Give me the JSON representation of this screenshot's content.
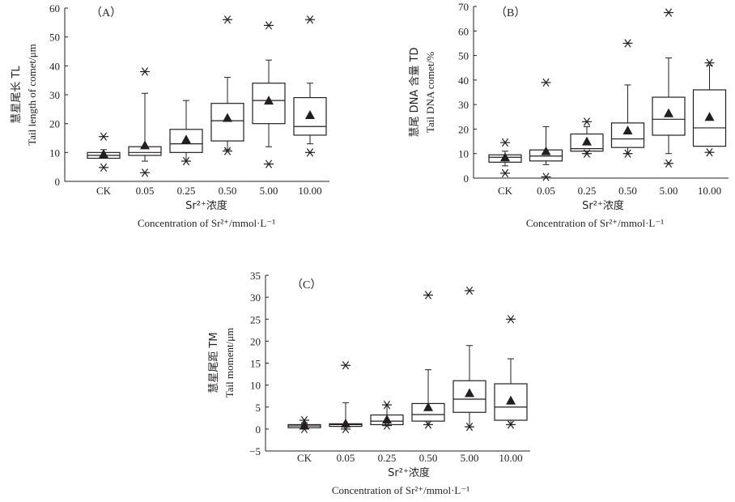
{
  "chart_data": [
    {
      "type": "box",
      "panel_label": "（A）",
      "categories": [
        "CK",
        "0.05",
        "0.25",
        "0.50",
        "5.00",
        "10.00"
      ],
      "ylim": [
        0,
        60
      ],
      "yticks": [
        "0",
        "10",
        "20",
        "30",
        "40",
        "50",
        "60"
      ],
      "ylabel_cn": "慧星尾长 TL",
      "ylabel_en": "Tail length of comet/μm",
      "xlabel_cn": "Sr²⁺浓度",
      "xlabel_en": "Concentration of Sr²⁺/mmol·L⁻¹",
      "boxes": [
        {
          "wlo": 8,
          "q1": 8,
          "median": 9,
          "q3": 10,
          "whi": 11,
          "mean": 9.5,
          "outliers": [
            4.8,
            15.5
          ]
        },
        {
          "wlo": 7,
          "q1": 9,
          "median": 10,
          "q3": 12,
          "whi": 30.5,
          "mean": 12.5,
          "outliers": [
            3,
            38
          ]
        },
        {
          "wlo": 7,
          "q1": 10,
          "median": 13,
          "q3": 18,
          "whi": 28,
          "mean": 14.5,
          "outliers": [
            7
          ]
        },
        {
          "wlo": 11,
          "q1": 14,
          "median": 21,
          "q3": 27,
          "whi": 36,
          "mean": 22,
          "outliers": [
            10.5,
            56
          ]
        },
        {
          "wlo": 12,
          "q1": 20,
          "median": 28,
          "q3": 34,
          "whi": 42,
          "mean": 28,
          "outliers": [
            6,
            54
          ]
        },
        {
          "wlo": 13,
          "q1": 16,
          "median": 19,
          "q3": 29,
          "whi": 34,
          "mean": 23,
          "outliers": [
            10,
            56
          ]
        }
      ]
    },
    {
      "type": "box",
      "panel_label": "（B）",
      "categories": [
        "CK",
        "0.05",
        "0.25",
        "0.50",
        "5.00",
        "10.00"
      ],
      "ylim": [
        0,
        70
      ],
      "yticks": [
        "0",
        "10",
        "20",
        "30",
        "40",
        "50",
        "60",
        "70"
      ],
      "ylabel_cn": "慧尾 DNA 含量 TD",
      "ylabel_en": "Tail DNA comet/%",
      "xlabel_cn": "Sr²⁺浓度",
      "xlabel_en": "Concentration of Sr²⁺/mmol·L⁻¹",
      "boxes": [
        {
          "wlo": 5,
          "q1": 6.5,
          "median": 8.5,
          "q3": 9.5,
          "whi": 11,
          "mean": 8.5,
          "outliers": [
            2,
            14.5
          ]
        },
        {
          "wlo": 5.5,
          "q1": 7,
          "median": 9,
          "q3": 11.5,
          "whi": 21,
          "mean": 11,
          "outliers": [
            0.5,
            39
          ]
        },
        {
          "wlo": 10,
          "q1": 11,
          "median": 12,
          "q3": 18,
          "whi": 21,
          "mean": 15,
          "outliers": [
            10,
            23
          ]
        },
        {
          "wlo": 10,
          "q1": 12.5,
          "median": 16,
          "q3": 22.5,
          "whi": 38,
          "mean": 19.5,
          "outliers": [
            10,
            55
          ]
        },
        {
          "wlo": 10,
          "q1": 17.5,
          "median": 24,
          "q3": 33,
          "whi": 49,
          "mean": 26.5,
          "outliers": [
            6,
            67.5
          ]
        },
        {
          "wlo": 13,
          "q1": 13,
          "median": 20.5,
          "q3": 36,
          "whi": 46,
          "mean": 25,
          "outliers": [
            10.5,
            47
          ]
        }
      ]
    },
    {
      "type": "box",
      "panel_label": "（C）",
      "categories": [
        "CK",
        "0.05",
        "0.25",
        "0.50",
        "5.00",
        "10.00"
      ],
      "ylim": [
        -5,
        35
      ],
      "yticks": [
        "−5",
        "0",
        "5",
        "10",
        "15",
        "20",
        "25",
        "30",
        "35"
      ],
      "ylabel_cn": "慧星尾距 TM",
      "ylabel_en": "Tail moment/μm",
      "xlabel_cn": "Sr²⁺浓度",
      "xlabel_en": "Concentration of Sr²⁺/mmol·L⁻¹",
      "boxes": [
        {
          "wlo": 0.3,
          "q1": 0.3,
          "median": 0.7,
          "q3": 1,
          "whi": 1.4,
          "mean": 0.8,
          "outliers": [
            0,
            2
          ]
        },
        {
          "wlo": 0.5,
          "q1": 0.6,
          "median": 1,
          "q3": 1.2,
          "whi": 6,
          "mean": 1.3,
          "outliers": [
            0,
            14.5
          ]
        },
        {
          "wlo": 0.8,
          "q1": 1,
          "median": 1.8,
          "q3": 3.2,
          "whi": 5.5,
          "mean": 2.2,
          "outliers": [
            0.8,
            5.5
          ]
        },
        {
          "wlo": 1,
          "q1": 1.8,
          "median": 3.3,
          "q3": 5.8,
          "whi": 13.5,
          "mean": 5,
          "outliers": [
            1,
            30.5
          ]
        },
        {
          "wlo": 0.5,
          "q1": 3.8,
          "median": 6.8,
          "q3": 11,
          "whi": 19,
          "mean": 8.2,
          "outliers": [
            0.5,
            31.5
          ]
        },
        {
          "wlo": 1,
          "q1": 2,
          "median": 5,
          "q3": 10.3,
          "whi": 16,
          "mean": 6.5,
          "outliers": [
            1,
            25
          ]
        }
      ]
    }
  ]
}
